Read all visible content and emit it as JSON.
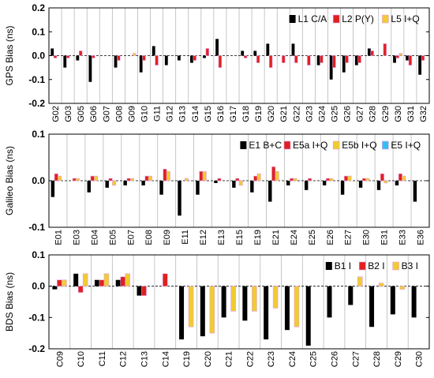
{
  "chart_data": [
    {
      "type": "bar",
      "ylabel": "GPS Bias (ns)",
      "ylim": [
        -0.2,
        0.2
      ],
      "yticks": [
        -0.2,
        -0.1,
        0.0,
        0.1,
        0.2
      ],
      "ytick_labels": [
        "-0.2",
        "-0.1",
        "0.0",
        "0.1",
        "0.2"
      ],
      "legend_position": "top-right",
      "grid": "vertical",
      "categories": [
        "G02",
        "G03",
        "G05",
        "G06",
        "G07",
        "G08",
        "G09",
        "G10",
        "G11",
        "G12",
        "G13",
        "G14",
        "G15",
        "G16",
        "G17",
        "G18",
        "G19",
        "G20",
        "G21",
        "G22",
        "G23",
        "G24",
        "G25",
        "G26",
        "G27",
        "G28",
        "G29",
        "G30",
        "G31",
        "G32"
      ],
      "series": [
        {
          "name": "L1 C/A",
          "color": "#000000",
          "values": [
            0.03,
            -0.05,
            -0.02,
            -0.11,
            0.0,
            -0.05,
            0.0,
            -0.07,
            0.04,
            -0.04,
            -0.02,
            -0.03,
            -0.01,
            0.07,
            0.0,
            0.02,
            0.02,
            0.05,
            0.0,
            0.05,
            0.0,
            -0.04,
            -0.1,
            -0.07,
            -0.04,
            0.03,
            0.0,
            -0.03,
            -0.02,
            -0.08
          ]
        },
        {
          "name": "L2 P(Y)",
          "color": "#e02020",
          "values": [
            -0.01,
            -0.01,
            0.02,
            -0.01,
            0.0,
            -0.02,
            0.0,
            -0.02,
            -0.04,
            0.0,
            0.0,
            -0.02,
            0.03,
            -0.05,
            0.0,
            -0.01,
            -0.03,
            -0.05,
            -0.03,
            -0.03,
            -0.04,
            -0.03,
            -0.05,
            -0.03,
            -0.03,
            0.02,
            0.05,
            -0.01,
            -0.04,
            -0.02
          ]
        },
        {
          "name": "L5 I+Q",
          "color": "#f0cc30",
          "values": [
            0.0,
            0.0,
            0.0,
            0.0,
            0.0,
            0.0,
            0.01,
            0.0,
            0.0,
            0.0,
            0.0,
            0.0,
            0.0,
            0.0,
            0.0,
            0.0,
            0.0,
            0.0,
            0.0,
            0.0,
            0.0,
            0.0,
            0.0,
            0.0,
            0.0,
            0.0,
            0.0,
            0.01,
            0.0,
            0.0
          ]
        }
      ]
    },
    {
      "type": "bar",
      "ylabel": "Galileo Bias (ns)",
      "ylim": [
        -0.1,
        0.1
      ],
      "yticks": [
        -0.1,
        0.0,
        0.1
      ],
      "ytick_labels": [
        "-0.1",
        "0.0",
        "0.1"
      ],
      "legend_position": "top-right",
      "grid": "vertical",
      "categories": [
        "E01",
        "E03",
        "E04",
        "E05",
        "E07",
        "E08",
        "E09",
        "E11",
        "E12",
        "E13",
        "E15",
        "E19",
        "E21",
        "E24",
        "E25",
        "E26",
        "E27",
        "E30",
        "E31",
        "E33",
        "E36"
      ],
      "series": [
        {
          "name": "E1 B+C",
          "color": "#000000",
          "values": [
            -0.035,
            0.0,
            -0.025,
            -0.015,
            -0.01,
            -0.01,
            -0.03,
            -0.075,
            -0.03,
            -0.005,
            -0.015,
            -0.025,
            -0.045,
            -0.01,
            -0.02,
            -0.01,
            -0.03,
            -0.015,
            -0.02,
            -0.01,
            -0.045
          ]
        },
        {
          "name": "E5a I+Q",
          "color": "#e02020",
          "values": [
            0.015,
            0.005,
            0.01,
            0.005,
            0.005,
            0.01,
            0.025,
            0.0,
            0.02,
            0.005,
            0.005,
            0.01,
            0.03,
            0.005,
            0.005,
            0.005,
            0.01,
            0.005,
            0.015,
            0.015,
            0.0
          ]
        },
        {
          "name": "E5b I+Q",
          "color": "#f0cc30",
          "values": [
            0.01,
            0.005,
            0.01,
            -0.01,
            0.005,
            0.01,
            0.02,
            0.005,
            0.02,
            0.0,
            -0.01,
            0.015,
            0.02,
            0.005,
            0.0,
            0.005,
            0.01,
            0.005,
            -0.005,
            0.01,
            0.0
          ]
        },
        {
          "name": "E5 I+Q",
          "color": "#30c0f0",
          "values": [
            0.0,
            0.0,
            0.0,
            0.0,
            0.0,
            0.0,
            0.0,
            0.0,
            0.0,
            0.0,
            0.0,
            0.0,
            0.0,
            0.0,
            0.0,
            0.0,
            0.0,
            0.0,
            0.0,
            0.0,
            0.0
          ]
        }
      ]
    },
    {
      "type": "bar",
      "ylabel": "BDS Bias (ns)",
      "ylim": [
        -0.2,
        0.1
      ],
      "yticks": [
        -0.2,
        -0.1,
        0.0,
        0.1
      ],
      "ytick_labels": [
        "-0.2",
        "-0.1",
        "0.0",
        "0.1"
      ],
      "legend_position": "top-right",
      "grid": "vertical",
      "categories": [
        "C09",
        "C10",
        "C11",
        "C12",
        "C13",
        "C14",
        "C19",
        "C20",
        "C21",
        "C22",
        "C23",
        "C24",
        "C25",
        "C26",
        "C27",
        "C28",
        "C29",
        "C30"
      ],
      "series": [
        {
          "name": "B1 I",
          "color": "#000000",
          "values": [
            -0.01,
            0.04,
            0.02,
            0.02,
            -0.03,
            0.0,
            -0.17,
            -0.16,
            -0.1,
            -0.11,
            -0.17,
            -0.14,
            -0.19,
            -0.1,
            -0.06,
            -0.13,
            -0.09,
            -0.1
          ]
        },
        {
          "name": "B2 I",
          "color": "#e02020",
          "values": [
            0.02,
            -0.02,
            0.02,
            0.03,
            -0.03,
            0.04,
            0.0,
            0.0,
            0.0,
            0.0,
            0.0,
            0.0,
            0.0,
            0.0,
            0.0,
            0.0,
            0.0,
            0.0
          ]
        },
        {
          "name": "B3 I",
          "color": "#f0cc30",
          "values": [
            0.02,
            0.04,
            0.04,
            0.04,
            0.0,
            0.0,
            -0.13,
            -0.15,
            -0.08,
            -0.08,
            -0.07,
            -0.13,
            0.0,
            0.0,
            0.03,
            0.01,
            -0.01,
            0.0
          ]
        }
      ]
    }
  ]
}
